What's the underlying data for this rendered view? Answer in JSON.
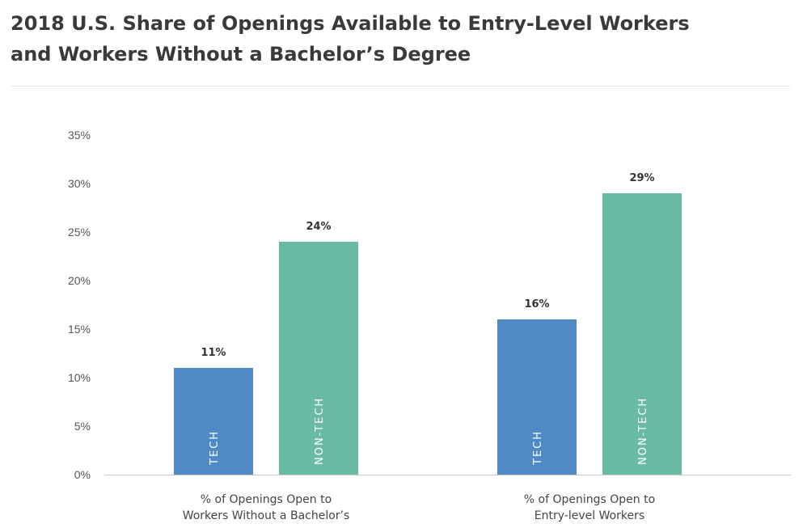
{
  "title_lines": [
    "2018 U.S. Share of Openings Available to Entry-Level Workers",
    "and Workers Without a Bachelor’s Degree"
  ],
  "colors": {
    "tech": "#4f89c6",
    "non_tech": "#69baa4",
    "axis": "#cccccc"
  },
  "chart_data": {
    "type": "bar",
    "title": "2018 U.S. Share of Openings Available to Entry-Level Workers and Workers Without a Bachelor’s Degree",
    "categories": [
      [
        "% of Openings Open to",
        "Workers Without a Bachelor’s"
      ],
      [
        "% of Openings Open to",
        "Entry-level Workers"
      ]
    ],
    "series": [
      {
        "name": "TECH",
        "values": [
          11,
          16
        ],
        "value_labels": [
          "11%",
          "16%"
        ]
      },
      {
        "name": "NON-TECH",
        "values": [
          24,
          29
        ],
        "value_labels": [
          "24%",
          "29%"
        ]
      }
    ],
    "ylim": [
      0,
      35
    ],
    "yticks": [
      {
        "value": 0,
        "label": "0%"
      },
      {
        "value": 5,
        "label": "5%"
      },
      {
        "value": 10,
        "label": "10%"
      },
      {
        "value": 15,
        "label": "15%"
      },
      {
        "value": 20,
        "label": "20%"
      },
      {
        "value": 25,
        "label": "25%"
      },
      {
        "value": 30,
        "label": "30%"
      },
      {
        "value": 35,
        "label": "35%"
      }
    ],
    "grid": false,
    "legend": "none (labels inside bars)"
  }
}
